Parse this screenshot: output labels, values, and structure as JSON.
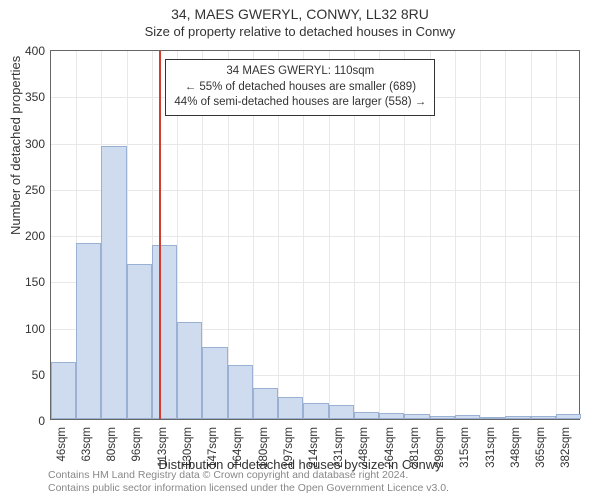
{
  "title_main": "34, MAES GWERYL, CONWY, LL32 8RU",
  "title_sub": "Size of property relative to detached houses in Conwy",
  "ylabel": "Number of detached properties",
  "xlabel": "Distribution of detached houses by size in Conwy",
  "caption_l1": "Contains HM Land Registry data © Crown copyright and database right 2024.",
  "caption_l2": "Contains public sector information licensed under the Open Government Licence v3.0.",
  "chart": {
    "type": "histogram",
    "ylim": [
      0,
      400
    ],
    "yticks": [
      0,
      50,
      100,
      150,
      200,
      250,
      300,
      350,
      400
    ],
    "xlabels": [
      "46sqm",
      "63sqm",
      "80sqm",
      "96sqm",
      "113sqm",
      "130sqm",
      "147sqm",
      "164sqm",
      "180sqm",
      "197sqm",
      "214sqm",
      "231sqm",
      "248sqm",
      "264sqm",
      "281sqm",
      "298sqm",
      "315sqm",
      "331sqm",
      "348sqm",
      "365sqm",
      "382sqm"
    ],
    "bar_color": "#cfdbef",
    "bar_border": "#9bb1d4",
    "grid_color": "#e8e8e8",
    "bg_color": "#ffffff",
    "values": [
      62,
      190,
      295,
      168,
      188,
      105,
      78,
      58,
      33,
      24,
      17,
      15,
      8,
      6,
      5,
      3,
      4,
      2,
      3,
      3,
      5
    ],
    "reference_line_x": 110,
    "reference_line_color": "#d43c2f",
    "x_min": 38,
    "x_max": 390
  },
  "callout": {
    "l1": "34 MAES GWERYL: 110sqm",
    "l2": "← 55% of detached houses are smaller (689)",
    "l3": "44% of semi-detached houses are larger (558) →"
  }
}
